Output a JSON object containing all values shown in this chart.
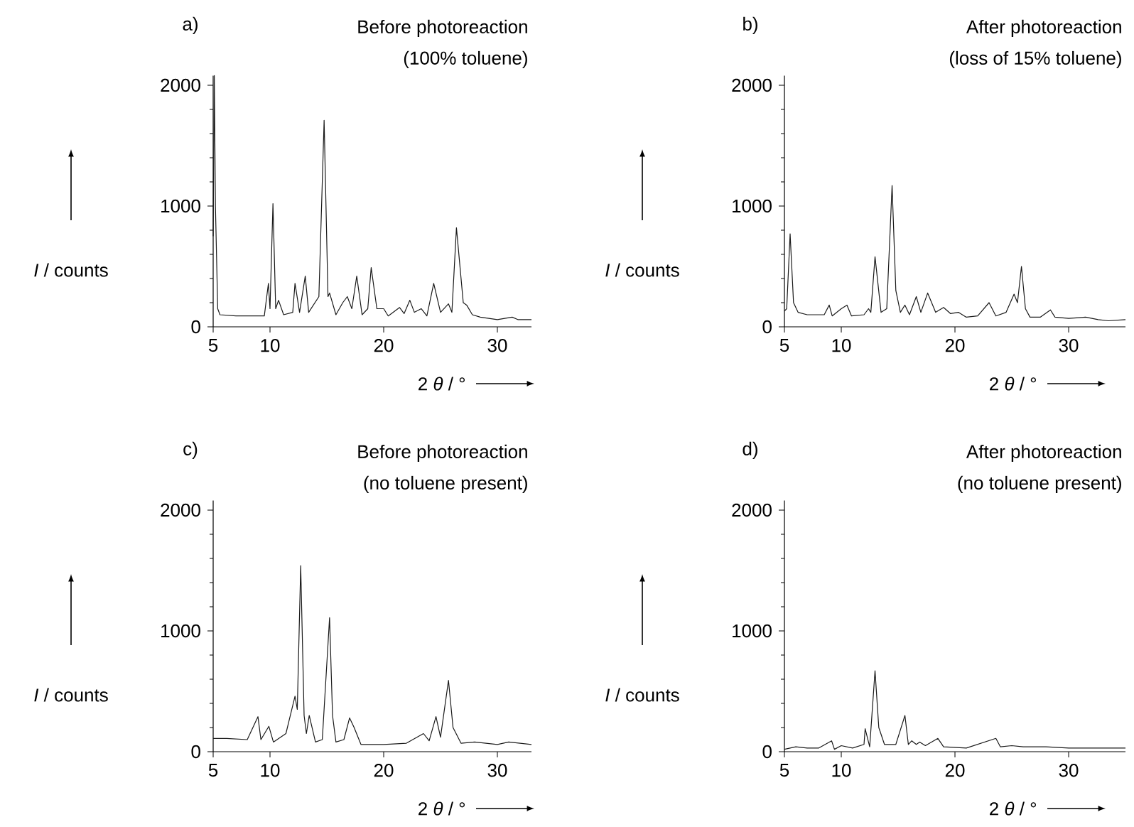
{
  "chart_data": [
    {
      "type": "line",
      "title": "Before photoreaction",
      "subtitle": "(100% toluene)",
      "annotations": [
        "a)"
      ],
      "xlabel": "2 *θ* / °",
      "ylabel": "*I* / counts",
      "xlim": [
        5,
        33
      ],
      "ylim": [
        0,
        2080
      ],
      "xticks": [
        5,
        10,
        20,
        30
      ],
      "yticks": [
        0,
        1000,
        2000
      ],
      "series": [
        {
          "color": "#1a1a1a",
          "x": [
            5.0,
            5.1,
            5.2,
            5.4,
            5.6,
            7,
            9,
            9.5,
            9.86,
            10.0,
            10.26,
            10.5,
            10.75,
            11.2,
            12,
            12.2,
            12.6,
            13.1,
            13.4,
            14.3,
            14.76,
            15.1,
            15.24,
            15.8,
            16.4,
            16.8,
            17.2,
            17.63,
            18.1,
            18.6,
            18.9,
            19.4,
            20.0,
            20.4,
            21.4,
            21.8,
            22.3,
            22.7,
            23.3,
            23.8,
            24.4,
            25.0,
            25.7,
            26.0,
            26.4,
            27.0,
            27.3,
            27.8,
            28.5,
            30,
            31.3,
            31.8,
            33
          ],
          "values": [
            750,
            2080,
            1000,
            150,
            100,
            90,
            90,
            90,
            360,
            150,
            1020,
            150,
            220,
            100,
            120,
            360,
            120,
            420,
            120,
            250,
            1710,
            250,
            280,
            100,
            200,
            250,
            150,
            420,
            100,
            150,
            490,
            150,
            150,
            90,
            160,
            110,
            220,
            120,
            150,
            90,
            360,
            120,
            190,
            120,
            820,
            200,
            180,
            100,
            80,
            60,
            80,
            60,
            60
          ]
        }
      ]
    },
    {
      "type": "line",
      "title": "After photoreaction",
      "subtitle": "(loss of 15% toluene)",
      "annotations": [
        "b)"
      ],
      "xlabel": "2 *θ* / °",
      "ylabel": "*I* / counts",
      "xlim": [
        5,
        35
      ],
      "ylim": [
        0,
        2080
      ],
      "xticks": [
        5,
        10,
        20,
        30
      ],
      "yticks": [
        0,
        1000,
        2000
      ],
      "series": [
        {
          "color": "#1a1a1a",
          "x": [
            5.0,
            5.2,
            5.5,
            5.8,
            6.2,
            7,
            8.5,
            8.94,
            9.2,
            10,
            10.5,
            10.9,
            12,
            12.4,
            12.6,
            12.97,
            13.5,
            14.0,
            14.47,
            14.8,
            15.2,
            15.6,
            16.0,
            16.6,
            17.0,
            17.6,
            18.3,
            19,
            19.6,
            20.3,
            21,
            22,
            23.0,
            23.6,
            24.5,
            25.2,
            25.5,
            25.85,
            26.2,
            26.6,
            27.5,
            28.4,
            28.8,
            30,
            31.5,
            32.6,
            33.5,
            35
          ],
          "values": [
            130,
            150,
            770,
            200,
            120,
            100,
            100,
            180,
            90,
            150,
            180,
            90,
            100,
            150,
            120,
            580,
            120,
            150,
            1170,
            300,
            120,
            180,
            100,
            250,
            120,
            280,
            120,
            160,
            110,
            120,
            80,
            90,
            200,
            90,
            120,
            270,
            200,
            500,
            150,
            80,
            80,
            140,
            80,
            70,
            80,
            60,
            50,
            60
          ]
        }
      ]
    },
    {
      "type": "line",
      "title": "Before photoreaction",
      "subtitle": "(no toluene present)",
      "annotations": [
        "c)"
      ],
      "xlabel": "2 *θ* / °",
      "ylabel": "*I* / counts",
      "xlim": [
        5,
        33
      ],
      "ylim": [
        0,
        2080
      ],
      "xticks": [
        5,
        10,
        20,
        30
      ],
      "yticks": [
        0,
        1000,
        2000
      ],
      "series": [
        {
          "color": "#1a1a1a",
          "x": [
            5.0,
            6.2,
            8,
            8.94,
            9.2,
            9.9,
            10.3,
            11.4,
            12.2,
            12.4,
            12.7,
            13.0,
            13.2,
            13.45,
            14.0,
            14.6,
            15.24,
            15.5,
            15.8,
            16.5,
            17.0,
            17.4,
            18.0,
            20,
            22,
            23.5,
            24.0,
            24.6,
            25.0,
            25.7,
            26.1,
            26.8,
            28,
            30,
            31,
            33
          ],
          "values": [
            110,
            110,
            100,
            290,
            100,
            210,
            80,
            150,
            460,
            350,
            1540,
            300,
            150,
            300,
            80,
            100,
            1110,
            300,
            80,
            100,
            280,
            200,
            60,
            60,
            70,
            150,
            90,
            290,
            120,
            590,
            200,
            70,
            80,
            60,
            80,
            60
          ]
        }
      ]
    },
    {
      "type": "line",
      "title": "After photoreaction",
      "subtitle": "(no toluene present)",
      "annotations": [
        "d)"
      ],
      "xlabel": "2 *θ* / °",
      "ylabel": "*I* / counts",
      "xlim": [
        5,
        35
      ],
      "ylim": [
        0,
        2080
      ],
      "xticks": [
        5,
        10,
        20,
        30
      ],
      "yticks": [
        0,
        1000,
        2000
      ],
      "series": [
        {
          "color": "#1a1a1a",
          "x": [
            5,
            6,
            7,
            8,
            9.15,
            9.4,
            10,
            11,
            12,
            12.1,
            12.5,
            12.97,
            13.3,
            13.8,
            14.8,
            15.6,
            15.9,
            16.2,
            16.6,
            16.9,
            17.4,
            18.5,
            19,
            21,
            23.6,
            24,
            25,
            26,
            28,
            30,
            35
          ],
          "values": [
            20,
            40,
            30,
            30,
            90,
            20,
            50,
            30,
            60,
            190,
            40,
            670,
            200,
            60,
            60,
            300,
            60,
            90,
            60,
            80,
            50,
            110,
            40,
            30,
            110,
            40,
            50,
            40,
            40,
            30,
            30
          ]
        }
      ]
    }
  ]
}
